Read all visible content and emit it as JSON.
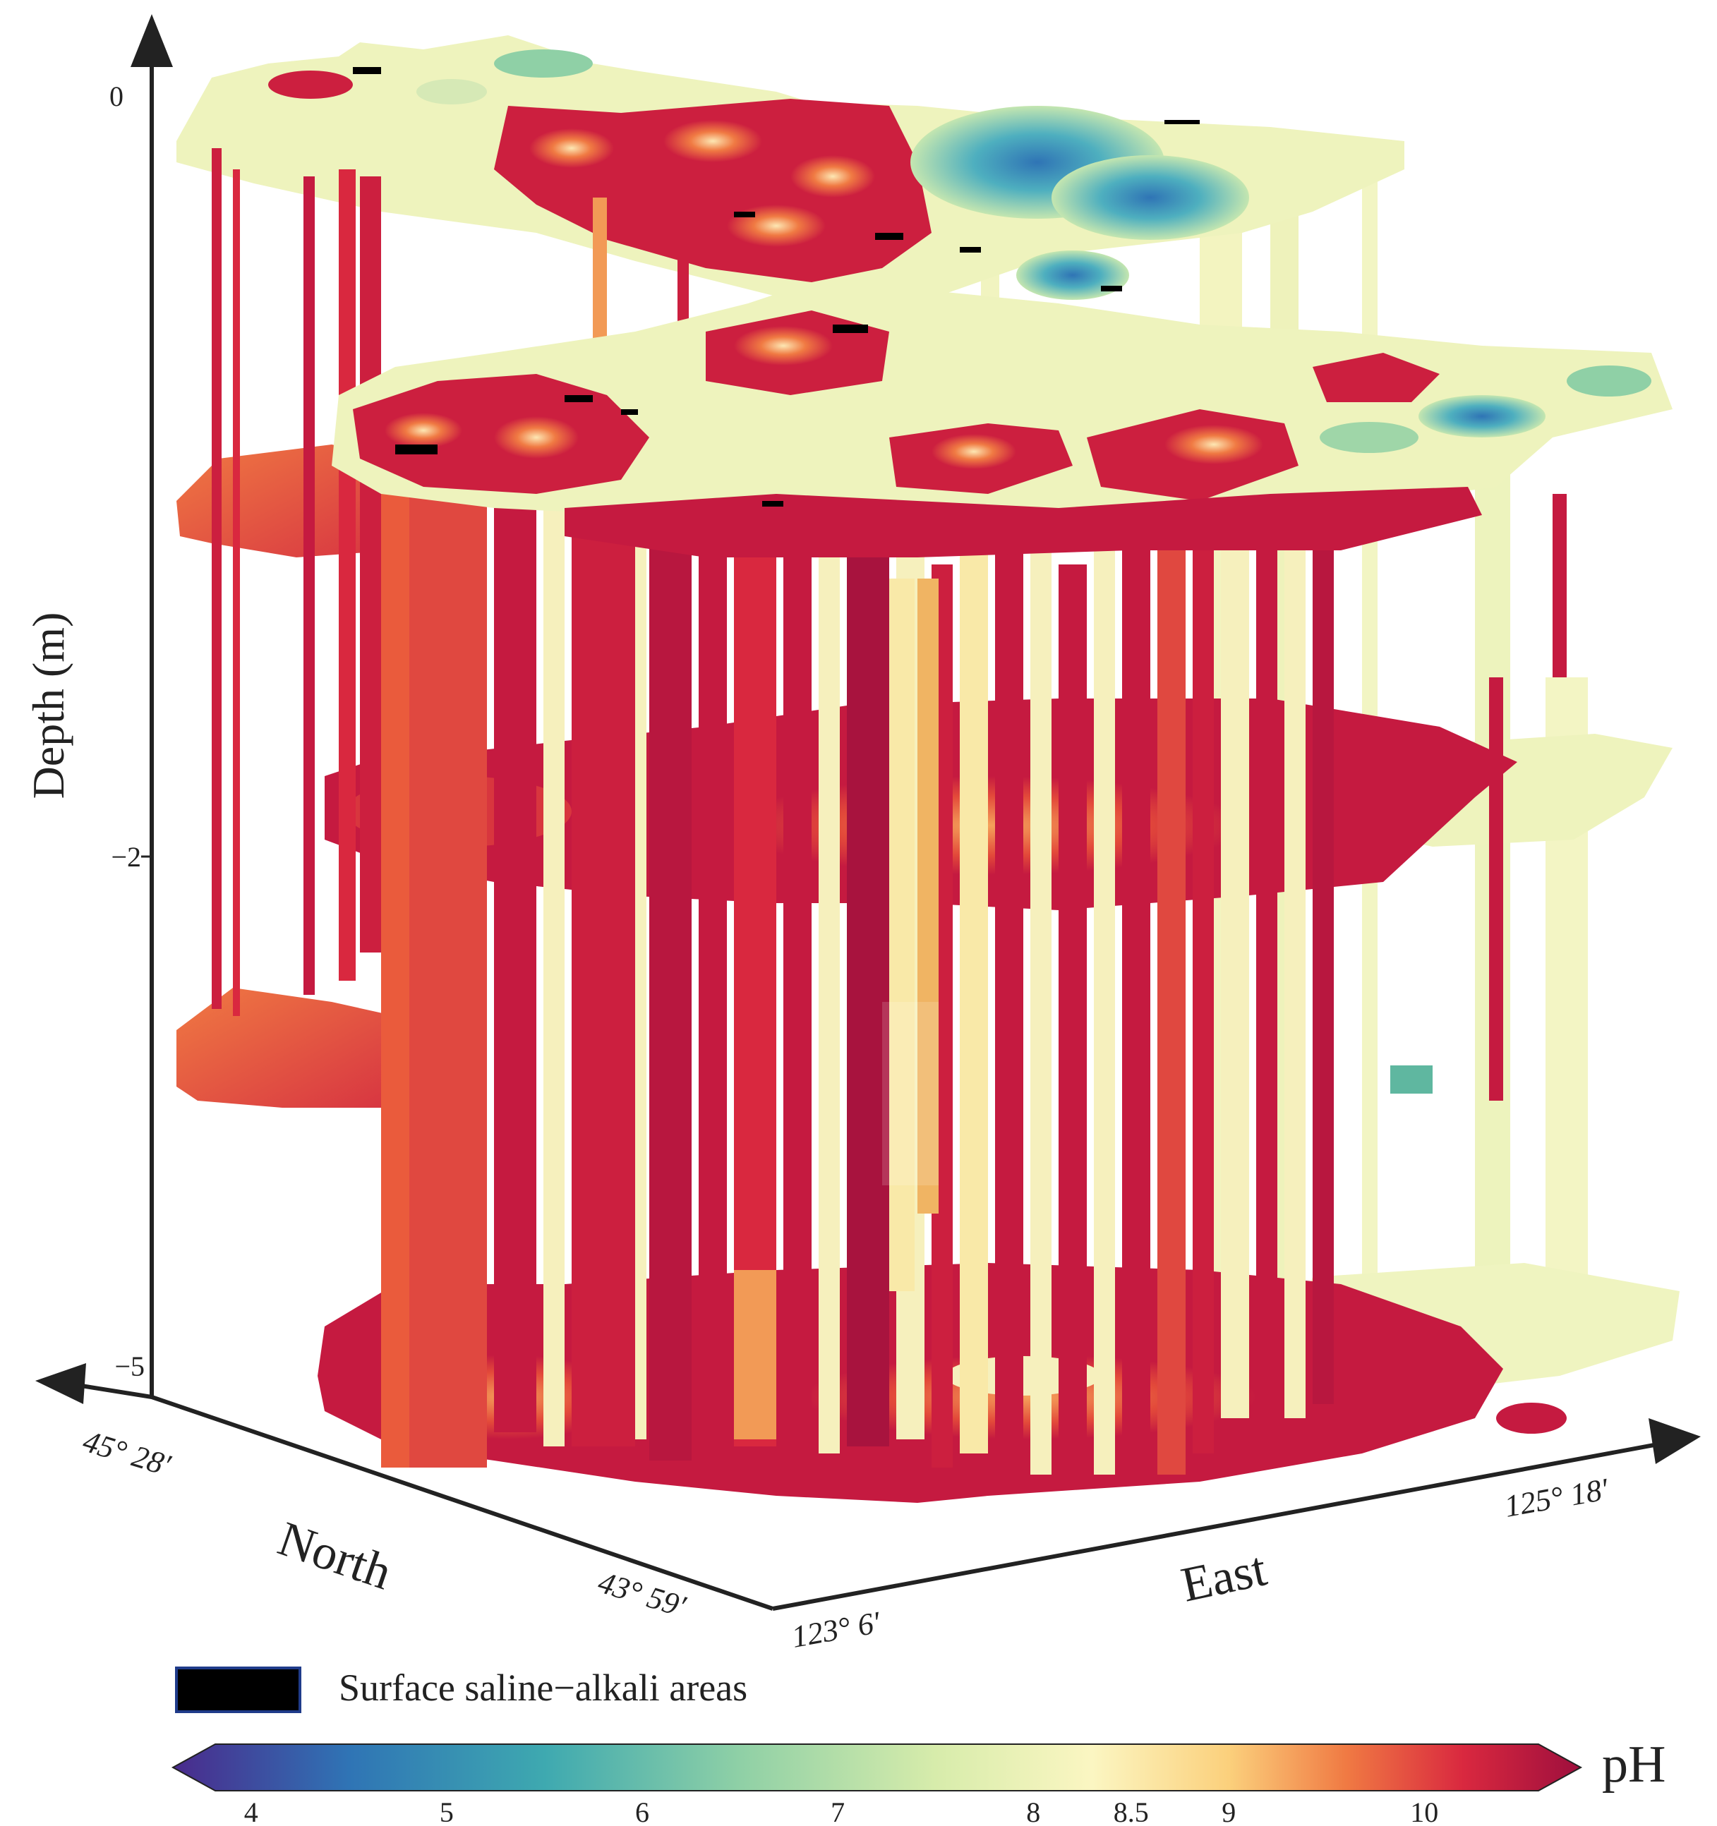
{
  "chart_data": {
    "type": "3d-voxel",
    "variable": "pH",
    "axes": {
      "depth": {
        "label": "Depth (m)",
        "ticks": [
          "0",
          "−2",
          "−5"
        ],
        "values": [
          0,
          -2,
          -5
        ]
      },
      "north": {
        "label": "North",
        "ticks": [
          "45° 28′",
          "43° 59′"
        ]
      },
      "east": {
        "label": "East",
        "ticks": [
          "123° 6′",
          "125° 18′"
        ]
      }
    },
    "layers": [
      {
        "depth": 0,
        "dominant": "mixed: acidic-neutral (blue/green) in east, alkaline (red) in center"
      },
      {
        "depth": -2,
        "dominant": "strongly alkaline (red)"
      },
      {
        "depth": -5,
        "dominant": "strongly alkaline (red)"
      }
    ],
    "legend": {
      "swatch_label": "Surface saline−alkali areas",
      "swatch_color": "#000000"
    },
    "colorbar": {
      "label": "pH",
      "ticks": [
        "4",
        "5",
        "6",
        "7",
        "8",
        "8.5",
        "9",
        "10"
      ],
      "tick_values": [
        4,
        5,
        6,
        7,
        8,
        8.5,
        9,
        10
      ],
      "range": [
        3.6,
        10.8
      ],
      "stops": [
        {
          "v": 3.6,
          "color": "#4a2a8c"
        },
        {
          "v": 4.5,
          "color": "#2f74b5"
        },
        {
          "v": 5.5,
          "color": "#3ea9b0"
        },
        {
          "v": 6.5,
          "color": "#8fd0a6"
        },
        {
          "v": 7.5,
          "color": "#d7ecab"
        },
        {
          "v": 8.3,
          "color": "#fbf6c2"
        },
        {
          "v": 9.0,
          "color": "#fbd07c"
        },
        {
          "v": 9.6,
          "color": "#f07a43"
        },
        {
          "v": 10.2,
          "color": "#d9283f"
        },
        {
          "v": 10.8,
          "color": "#9e0f3d"
        }
      ]
    }
  }
}
